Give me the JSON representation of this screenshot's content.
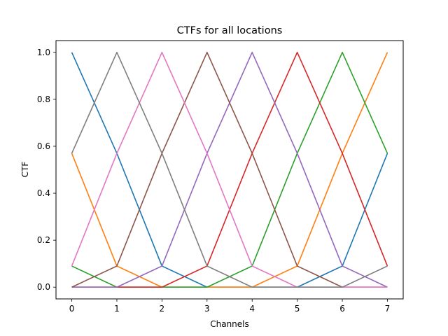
{
  "chart_data": {
    "type": "line",
    "title": "CTFs for all locations",
    "xlabel": "Channels",
    "ylabel": "CTF",
    "x": [
      0,
      1,
      2,
      3,
      4,
      5,
      6,
      7
    ],
    "xlim": [
      -0.35,
      7.35
    ],
    "ylim": [
      -0.05,
      1.05
    ],
    "xticks": [
      "0",
      "1",
      "2",
      "3",
      "4",
      "5",
      "6",
      "7"
    ],
    "yticks": [
      "0.0",
      "0.2",
      "0.4",
      "0.6",
      "0.8",
      "1.0"
    ],
    "grid": false,
    "series": [
      {
        "color": "#1f77b4",
        "values": [
          1.0,
          0.57,
          0.09,
          0.0,
          0.0,
          0.0,
          0.09,
          0.57
        ]
      },
      {
        "color": "#ff7f0e",
        "values": [
          0.57,
          0.09,
          0.0,
          0.0,
          0.0,
          0.09,
          0.57,
          1.0
        ]
      },
      {
        "color": "#2ca02c",
        "values": [
          0.09,
          0.0,
          0.0,
          0.0,
          0.09,
          0.57,
          1.0,
          0.57
        ]
      },
      {
        "color": "#d62728",
        "values": [
          0.0,
          0.0,
          0.0,
          0.09,
          0.57,
          1.0,
          0.57,
          0.09
        ]
      },
      {
        "color": "#9467bd",
        "values": [
          0.0,
          0.0,
          0.09,
          0.57,
          1.0,
          0.57,
          0.09,
          0.0
        ]
      },
      {
        "color": "#8c564b",
        "values": [
          0.0,
          0.09,
          0.57,
          1.0,
          0.57,
          0.09,
          0.0,
          0.0
        ]
      },
      {
        "color": "#e377c2",
        "values": [
          0.09,
          0.57,
          1.0,
          0.57,
          0.09,
          0.0,
          0.0,
          0.0
        ]
      },
      {
        "color": "#7f7f7f",
        "values": [
          0.57,
          1.0,
          0.57,
          0.09,
          0.0,
          0.0,
          0.0,
          0.09
        ]
      }
    ]
  }
}
